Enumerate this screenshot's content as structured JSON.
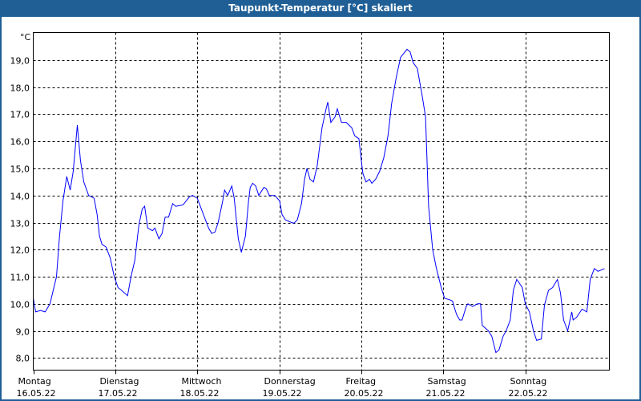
{
  "window": {
    "title": "Taupunkt-Temperatur [°C] skaliert"
  },
  "chart_data": {
    "type": "line",
    "title": "Taupunkt-Temperatur [°C] skaliert",
    "ylabel": "°C",
    "xlabel": "",
    "ylim": [
      7.55,
      20.02
    ],
    "xlim_hours": [
      0,
      168.6
    ],
    "grid": true,
    "yticks": [
      8,
      9,
      10,
      11,
      12,
      13,
      14,
      15,
      16,
      17,
      18,
      19
    ],
    "ytick_labels": [
      "8,0",
      "9,0",
      "10,0",
      "11,0",
      "12,0",
      "13,0",
      "14,0",
      "15,0",
      "16,0",
      "17,0",
      "18,0",
      "19,0"
    ],
    "xticks": [
      {
        "hour": 0,
        "day": "Montag",
        "date": "16.05.22"
      },
      {
        "hour": 24,
        "day": "Dienstag",
        "date": "17.05.22"
      },
      {
        "hour": 48,
        "day": "Mittwoch",
        "date": "18.05.22"
      },
      {
        "hour": 72,
        "day": "Donnerstag",
        "date": "19.05.22"
      },
      {
        "hour": 96,
        "day": "Freitag",
        "date": "20.05.22"
      },
      {
        "hour": 120,
        "day": "Samstag",
        "date": "21.05.22"
      },
      {
        "hour": 144,
        "day": "Sonntag",
        "date": "22.05.22"
      }
    ],
    "series": [
      {
        "name": "Taupunkt",
        "color": "#0000ff",
        "points": [
          [
            0,
            10.2
          ],
          [
            0.7,
            9.7
          ],
          [
            2.1,
            9.75
          ],
          [
            3.5,
            9.7
          ],
          [
            4.9,
            10.0
          ],
          [
            6.8,
            11.0
          ],
          [
            7.7,
            12.5
          ],
          [
            8.7,
            13.8
          ],
          [
            9.8,
            14.7
          ],
          [
            10.8,
            14.2
          ],
          [
            11.7,
            14.9
          ],
          [
            12.9,
            16.6
          ],
          [
            13.8,
            15.3
          ],
          [
            14.8,
            14.5
          ],
          [
            16.2,
            14.0
          ],
          [
            17.8,
            13.9
          ],
          [
            18.7,
            13.3
          ],
          [
            19.4,
            12.5
          ],
          [
            20.1,
            12.2
          ],
          [
            21.3,
            12.1
          ],
          [
            22.5,
            11.7
          ],
          [
            23.7,
            11.0
          ],
          [
            24.8,
            10.6
          ],
          [
            25.8,
            10.5
          ],
          [
            27.6,
            10.3
          ],
          [
            28.6,
            11.0
          ],
          [
            29.7,
            11.6
          ],
          [
            30.9,
            12.9
          ],
          [
            31.9,
            13.5
          ],
          [
            32.6,
            13.6
          ],
          [
            33.5,
            12.8
          ],
          [
            34.9,
            12.7
          ],
          [
            35.6,
            12.8
          ],
          [
            36.8,
            12.4
          ],
          [
            37.7,
            12.6
          ],
          [
            38.6,
            13.2
          ],
          [
            39.6,
            13.2
          ],
          [
            40.8,
            13.7
          ],
          [
            41.7,
            13.6
          ],
          [
            43.8,
            13.65
          ],
          [
            45.7,
            13.95
          ],
          [
            46.6,
            14.0
          ],
          [
            48.0,
            13.9
          ],
          [
            49.2,
            13.5
          ],
          [
            50.4,
            13.1
          ],
          [
            51.3,
            12.8
          ],
          [
            52.2,
            12.6
          ],
          [
            53.2,
            12.65
          ],
          [
            54.1,
            13.0
          ],
          [
            55.3,
            13.7
          ],
          [
            56.0,
            14.2
          ],
          [
            56.9,
            14.0
          ],
          [
            58.1,
            14.35
          ],
          [
            58.8,
            13.9
          ],
          [
            60.0,
            12.4
          ],
          [
            60.9,
            11.9
          ],
          [
            62.1,
            12.5
          ],
          [
            63.0,
            13.8
          ],
          [
            63.5,
            14.3
          ],
          [
            64.2,
            14.45
          ],
          [
            65.1,
            14.35
          ],
          [
            66.0,
            14.0
          ],
          [
            67.5,
            14.3
          ],
          [
            68.2,
            14.25
          ],
          [
            69.1,
            14.0
          ],
          [
            70.7,
            14.0
          ],
          [
            72.1,
            13.8
          ],
          [
            72.8,
            13.3
          ],
          [
            73.8,
            13.1
          ],
          [
            75.6,
            13.0
          ],
          [
            76.3,
            12.98
          ],
          [
            77.3,
            13.1
          ],
          [
            78.5,
            13.7
          ],
          [
            79.4,
            14.6
          ],
          [
            80.1,
            15.0
          ],
          [
            81.0,
            14.6
          ],
          [
            82.0,
            14.5
          ],
          [
            83.1,
            15.1
          ],
          [
            84.5,
            16.5
          ],
          [
            85.7,
            17.2
          ],
          [
            86.2,
            17.45
          ],
          [
            87.1,
            16.7
          ],
          [
            88.3,
            16.9
          ],
          [
            89.0,
            17.2
          ],
          [
            90.2,
            16.7
          ],
          [
            91.6,
            16.7
          ],
          [
            93.2,
            16.5
          ],
          [
            94.1,
            16.2
          ],
          [
            95.3,
            16.1
          ],
          [
            96.0,
            15.3
          ],
          [
            96.5,
            14.8
          ],
          [
            97.4,
            14.5
          ],
          [
            98.4,
            14.6
          ],
          [
            99.1,
            14.45
          ],
          [
            100.2,
            14.6
          ],
          [
            101.4,
            14.9
          ],
          [
            102.6,
            15.4
          ],
          [
            103.8,
            16.2
          ],
          [
            104.9,
            17.4
          ],
          [
            106.3,
            18.4
          ],
          [
            107.5,
            19.1
          ],
          [
            109.4,
            19.4
          ],
          [
            110.3,
            19.3
          ],
          [
            111.2,
            18.9
          ],
          [
            112.4,
            18.7
          ],
          [
            113.8,
            17.7
          ],
          [
            114.8,
            16.9
          ],
          [
            115.7,
            13.6
          ],
          [
            116.9,
            12.0
          ],
          [
            118.0,
            11.3
          ],
          [
            119.4,
            10.6
          ],
          [
            120.4,
            10.2
          ],
          [
            121.8,
            10.15
          ],
          [
            122.7,
            10.1
          ],
          [
            123.4,
            9.8
          ],
          [
            123.9,
            9.6
          ],
          [
            124.8,
            9.4
          ],
          [
            125.5,
            9.4
          ],
          [
            126.7,
            9.9
          ],
          [
            127.2,
            10.0
          ],
          [
            128.6,
            9.9
          ],
          [
            130.0,
            10.0
          ],
          [
            130.9,
            10.0
          ],
          [
            131.4,
            9.2
          ],
          [
            133.2,
            9.0
          ],
          [
            134.2,
            8.8
          ],
          [
            135.4,
            8.2
          ],
          [
            136.3,
            8.3
          ],
          [
            137.5,
            8.8
          ],
          [
            138.4,
            9.0
          ],
          [
            139.6,
            9.4
          ],
          [
            140.5,
            10.5
          ],
          [
            141.5,
            10.9
          ],
          [
            143.1,
            10.6
          ],
          [
            144.0,
            10.0
          ],
          [
            145.2,
            9.7
          ],
          [
            146.4,
            9.0
          ],
          [
            147.3,
            8.65
          ],
          [
            148.7,
            8.7
          ],
          [
            149.6,
            9.95
          ],
          [
            150.8,
            10.5
          ],
          [
            152.0,
            10.6
          ],
          [
            153.4,
            10.9
          ],
          [
            154.3,
            10.4
          ],
          [
            155.2,
            9.4
          ],
          [
            156.4,
            9.0
          ],
          [
            157.6,
            9.7
          ],
          [
            158.0,
            9.4
          ],
          [
            159.0,
            9.5
          ],
          [
            160.6,
            9.8
          ],
          [
            162.0,
            9.7
          ],
          [
            163.0,
            10.9
          ],
          [
            164.2,
            11.3
          ],
          [
            165.3,
            11.2
          ],
          [
            167.2,
            11.3
          ]
        ]
      }
    ]
  }
}
